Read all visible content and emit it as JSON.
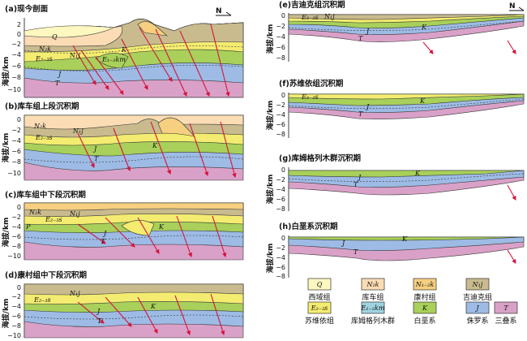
{
  "panels": [
    {
      "id": "a",
      "title": "(a)现今剖面",
      "ylabel": "海拔/km",
      "yticks": [
        "2",
        "0",
        "−2",
        "−4",
        "−6",
        "−8",
        "−10"
      ],
      "labels": {
        "Q": "Q",
        "n2k": "N₂k",
        "n1j": "N₁j",
        "e23s": "E₂₋₃s",
        "k": "K",
        "j": "J",
        "t": "T",
        "e12km": "E₁₋₂km"
      },
      "north": "N"
    },
    {
      "id": "b",
      "title": "(b)库车组上段沉积期",
      "ylabel": "海拔/km",
      "yticks": [
        "0",
        "−2",
        "−4",
        "−6",
        "−8",
        "−10"
      ],
      "labels": {
        "n2k": "N₂k",
        "n1j": "N₁j",
        "e23s": "E₂₋₃s",
        "k": "K",
        "j": "J",
        "t": "T"
      }
    },
    {
      "id": "c",
      "title": "(c)库车组中下段沉积期",
      "ylabel": "海拔/km",
      "yticks": [
        "0",
        "−2",
        "−4",
        "−6",
        "−8",
        "−10"
      ],
      "labels": {
        "n2k": "N₂k",
        "n1j": "N₁j",
        "e23s": "E₂₋₃s",
        "k": "K",
        "j": "J",
        "t": "T",
        "p": "P"
      }
    },
    {
      "id": "d",
      "title": "(d)康村组中下段沉积期",
      "ylabel": "海拔/km",
      "yticks": [
        "0",
        "−2",
        "−4",
        "−6",
        "−8",
        "−10"
      ],
      "labels": {
        "n1j": "N₁j",
        "e23s": "E₂₋₃s",
        "k": "K",
        "j": "J",
        "t": "T"
      }
    },
    {
      "id": "e",
      "title": "(e)吉迪克组沉积期",
      "ylabel": "海拔/km",
      "yticks": [
        "0",
        "−2",
        "−4",
        "−6",
        "−8"
      ],
      "labels": {
        "n1j": "N₁j",
        "e23s": "E₂₋₃s",
        "k": "K",
        "j": "J",
        "t": "T"
      },
      "north": "N"
    },
    {
      "id": "f",
      "title": "(f)苏维依组沉积期",
      "ylabel": "海拔/km",
      "yticks": [
        "0",
        "−2",
        "−4",
        "−6",
        "−8"
      ],
      "labels": {
        "e23s": "E₂₋₃s",
        "k": "K",
        "j": "J",
        "t": "T"
      }
    },
    {
      "id": "g",
      "title": "(g)库姆格列木群沉积期",
      "ylabel": "海拔/km",
      "yticks": [
        "0",
        "−2",
        "−4",
        "−6",
        "−8"
      ],
      "labels": {
        "k": "K",
        "j": "J",
        "t": "T"
      }
    },
    {
      "id": "h",
      "title": "(h)白垩系沉积期",
      "ylabel": "海拔/km",
      "yticks": [
        "0",
        "−2",
        "−4",
        "−6",
        "−8"
      ],
      "labels": {
        "k": "K",
        "j": "J",
        "t": "T"
      }
    }
  ],
  "legend": [
    {
      "sym": "Q",
      "name": "西域组",
      "color": "#fdf7c0"
    },
    {
      "sym": "N₂k",
      "name": "库车组",
      "color": "#fbdcb4"
    },
    {
      "sym": "N₁₋₂k",
      "name": "康村组",
      "color": "#f6cf80"
    },
    {
      "sym": "N₁j",
      "name": "吉迪克组",
      "color": "#c9bb8e"
    },
    {
      "sym": "E₂₋₃s",
      "name": "苏维依组",
      "color": "#f3ec70"
    },
    {
      "sym": "E₁₋₂km",
      "name": "库姆格列木群",
      "color": "#9fd3e0"
    },
    {
      "sym": "K",
      "name": "白垩系",
      "color": "#a8d05a"
    },
    {
      "sym": "J",
      "name": "侏罗系",
      "color": "#9dbbe5"
    },
    {
      "sym": "T",
      "name": "三叠系",
      "color": "#d9a1c8"
    }
  ],
  "colors": {
    "Q": "#fdf7c0",
    "N2k": "#fbdcb4",
    "N12k": "#f6cf80",
    "N1j": "#c9bb8e",
    "E23s": "#f3ec70",
    "E12km": "#9fd3e0",
    "K": "#a8d05a",
    "J": "#9dbbe5",
    "T": "#d9a1c8",
    "fault": "#d4143c",
    "P": "#e9c6dc"
  }
}
